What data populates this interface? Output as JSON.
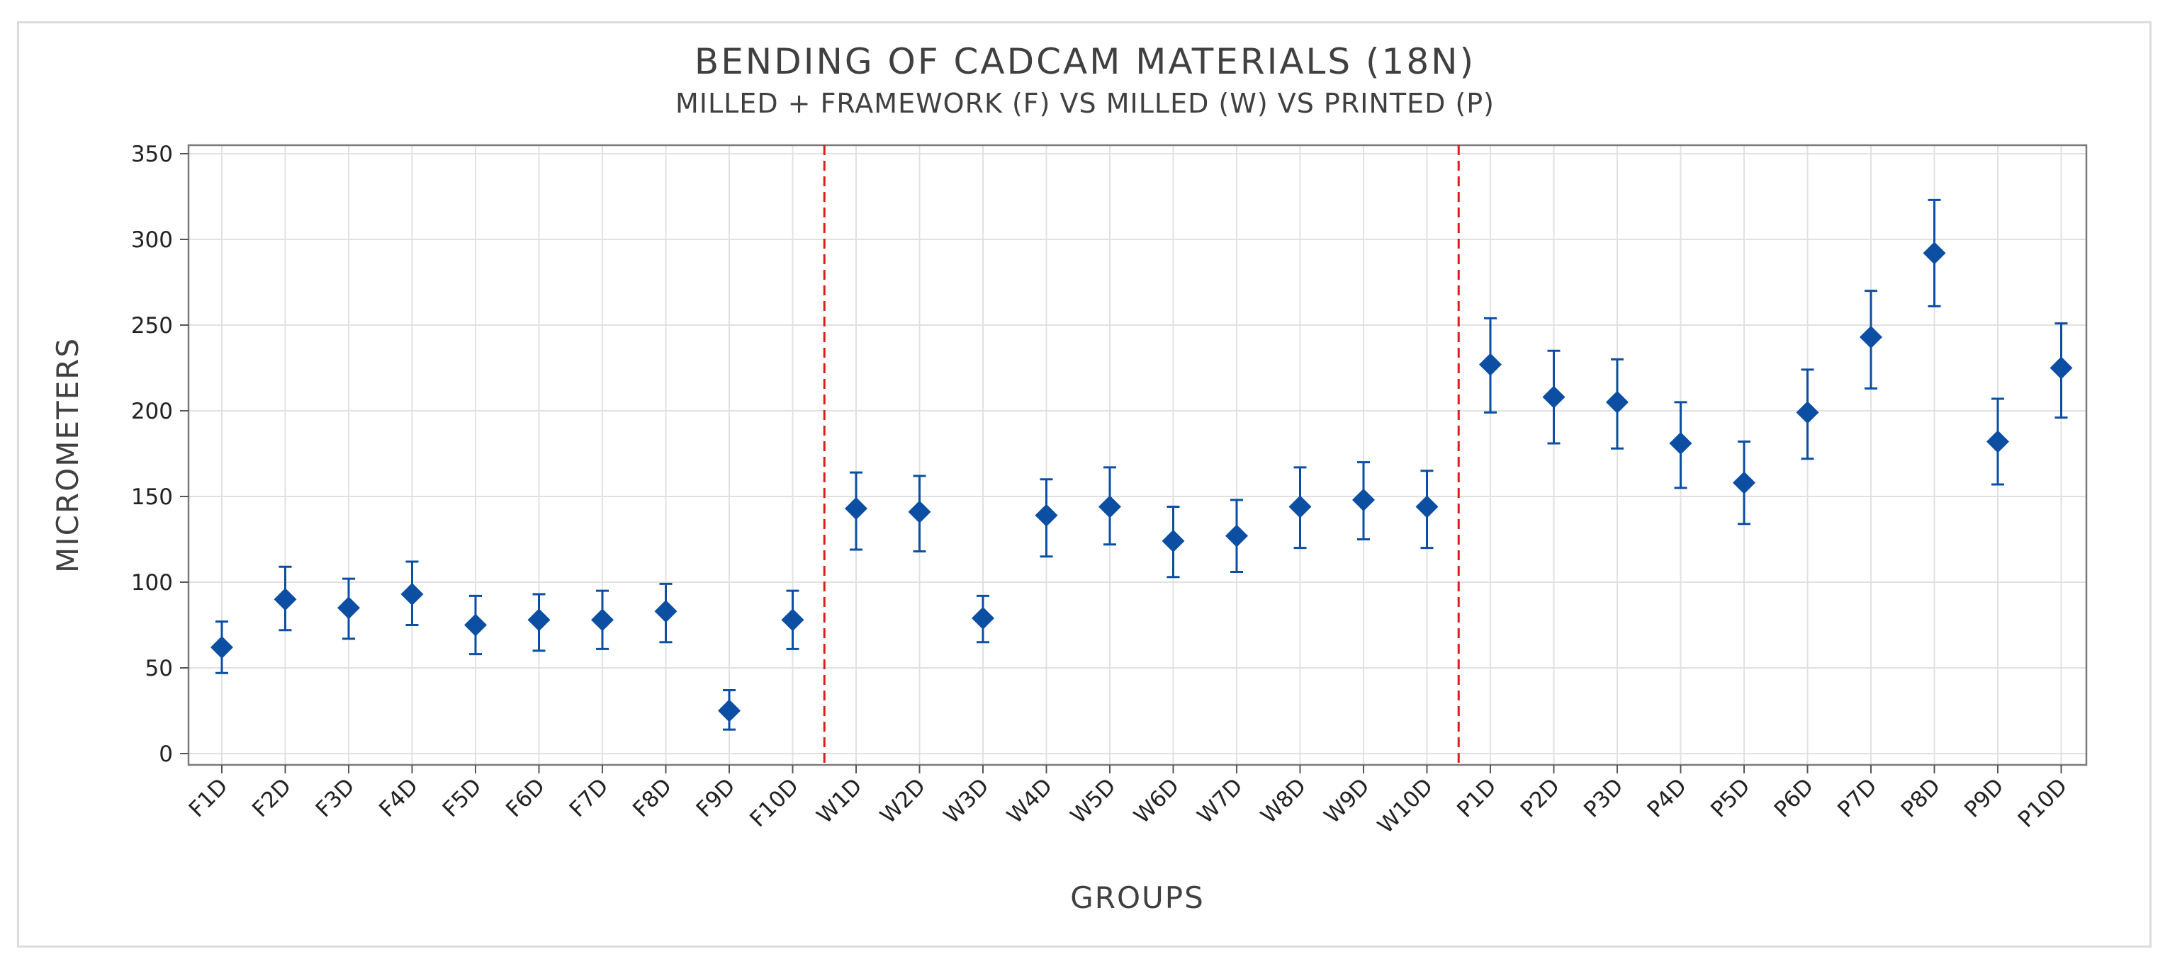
{
  "chart_data": {
    "type": "scatter",
    "style": "interval-plot",
    "title": "BENDING OF CADCAM  MATERIALS (18N)",
    "subtitle": "MILLED + FRAMEWORK (F) VS  MILLED (W) VS PRINTED (P)",
    "xlabel": "GROUPS",
    "ylabel": "MICROMETERS",
    "ylim": [
      -7,
      355
    ],
    "yticks": [
      0,
      50,
      100,
      150,
      200,
      250,
      300,
      350
    ],
    "grid": true,
    "marker_color": "#0b4ea2",
    "divider_color": "#d91e1e",
    "dividers_after": [
      "F10D",
      "W10D"
    ],
    "categories": [
      "F1D",
      "F2D",
      "F3D",
      "F4D",
      "F5D",
      "F6D",
      "F7D",
      "F8D",
      "F9D",
      "F10D",
      "W1D",
      "W2D",
      "W3D",
      "W4D",
      "W5D",
      "W6D",
      "W7D",
      "W8D",
      "W9D",
      "W10D",
      "P1D",
      "P2D",
      "P3D",
      "P4D",
      "P5D",
      "P6D",
      "P7D",
      "P8D",
      "P9D",
      "P10D"
    ],
    "values": [
      62,
      90,
      85,
      93,
      75,
      78,
      78,
      83,
      25,
      78,
      143,
      141,
      79,
      139,
      144,
      124,
      127,
      144,
      148,
      144,
      227,
      208,
      205,
      181,
      158,
      199,
      243,
      292,
      182,
      225
    ],
    "lower": [
      47,
      72,
      67,
      75,
      58,
      60,
      61,
      65,
      14,
      61,
      119,
      118,
      65,
      115,
      122,
      103,
      106,
      120,
      125,
      120,
      199,
      181,
      178,
      155,
      134,
      172,
      213,
      261,
      157,
      196
    ],
    "upper": [
      77,
      109,
      102,
      112,
      92,
      93,
      95,
      99,
      37,
      95,
      164,
      162,
      92,
      160,
      167,
      144,
      148,
      167,
      170,
      165,
      254,
      235,
      230,
      205,
      182,
      224,
      270,
      323,
      207,
      251
    ]
  }
}
